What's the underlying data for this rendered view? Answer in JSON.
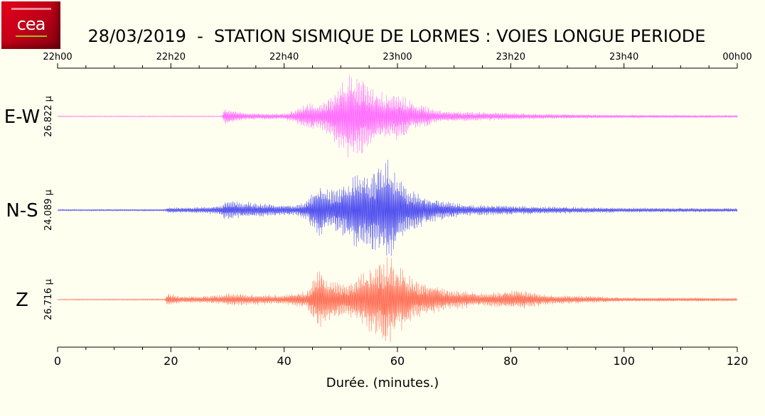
{
  "title": "28/03/2019  -  STATION SISMIQUE DE LORMES : VOIES LONGUE PERIODE",
  "logo": {
    "text": "cea"
  },
  "colors": {
    "background": "#fffff0",
    "ew": "#ff55ff",
    "ns": "#3333ee",
    "z": "#ff5a40"
  },
  "chart_data": {
    "type": "line",
    "title": "28/03/2019  -  STATION SISMIQUE DE LORMES : VOIES LONGUE PERIODE",
    "xlabel": "Durée.  (minutes.)",
    "xlim": [
      0,
      120
    ],
    "x_ticks": [
      "0",
      "20",
      "40",
      "60",
      "80",
      "100",
      "120"
    ],
    "top_axis_ticks": [
      "22h00",
      "22h20",
      "22h40",
      "23h00",
      "23h20",
      "23h40",
      "00h00"
    ],
    "grid": false,
    "series": [
      {
        "name": "E-W",
        "amplitude_label": "26.822 µ",
        "color": "#ff55ff",
        "envelope": [
          {
            "t": 0,
            "a": 0.01
          },
          {
            "t": 29,
            "a": 0.01
          },
          {
            "t": 29.5,
            "a": 0.18
          },
          {
            "t": 33,
            "a": 0.08
          },
          {
            "t": 40,
            "a": 0.07
          },
          {
            "t": 42,
            "a": 0.15
          },
          {
            "t": 44,
            "a": 0.32
          },
          {
            "t": 46,
            "a": 0.25
          },
          {
            "t": 48,
            "a": 0.45
          },
          {
            "t": 50,
            "a": 0.75
          },
          {
            "t": 52,
            "a": 1.0
          },
          {
            "t": 54,
            "a": 0.85
          },
          {
            "t": 56,
            "a": 0.6
          },
          {
            "t": 58,
            "a": 0.5
          },
          {
            "t": 60,
            "a": 0.55
          },
          {
            "t": 63,
            "a": 0.3
          },
          {
            "t": 68,
            "a": 0.12
          },
          {
            "t": 75,
            "a": 0.1
          },
          {
            "t": 85,
            "a": 0.06
          },
          {
            "t": 100,
            "a": 0.04
          },
          {
            "t": 120,
            "a": 0.03
          }
        ]
      },
      {
        "name": "N-S",
        "amplitude_label": "24.089 µ",
        "color": "#3333ee",
        "envelope": [
          {
            "t": 0,
            "a": 0.015
          },
          {
            "t": 19,
            "a": 0.02
          },
          {
            "t": 19.5,
            "a": 0.06
          },
          {
            "t": 25,
            "a": 0.06
          },
          {
            "t": 29,
            "a": 0.1
          },
          {
            "t": 29.5,
            "a": 0.2
          },
          {
            "t": 35,
            "a": 0.15
          },
          {
            "t": 42,
            "a": 0.1
          },
          {
            "t": 44,
            "a": 0.2
          },
          {
            "t": 46,
            "a": 0.55
          },
          {
            "t": 48,
            "a": 0.4
          },
          {
            "t": 50,
            "a": 0.5
          },
          {
            "t": 53,
            "a": 0.75
          },
          {
            "t": 56,
            "a": 0.85
          },
          {
            "t": 58.5,
            "a": 1.0
          },
          {
            "t": 60,
            "a": 0.7
          },
          {
            "t": 62,
            "a": 0.45
          },
          {
            "t": 66,
            "a": 0.25
          },
          {
            "t": 72,
            "a": 0.12
          },
          {
            "t": 85,
            "a": 0.08
          },
          {
            "t": 100,
            "a": 0.05
          },
          {
            "t": 120,
            "a": 0.04
          }
        ]
      },
      {
        "name": "Z",
        "amplitude_label": "26.716 µ",
        "color": "#ff5a40",
        "envelope": [
          {
            "t": 0,
            "a": 0.01
          },
          {
            "t": 19,
            "a": 0.015
          },
          {
            "t": 19.3,
            "a": 0.15
          },
          {
            "t": 22,
            "a": 0.07
          },
          {
            "t": 29,
            "a": 0.1
          },
          {
            "t": 30,
            "a": 0.14
          },
          {
            "t": 40,
            "a": 0.1
          },
          {
            "t": 44,
            "a": 0.2
          },
          {
            "t": 46,
            "a": 0.65
          },
          {
            "t": 48,
            "a": 0.45
          },
          {
            "t": 51,
            "a": 0.35
          },
          {
            "t": 54,
            "a": 0.6
          },
          {
            "t": 56,
            "a": 0.8
          },
          {
            "t": 58.5,
            "a": 1.0
          },
          {
            "t": 60,
            "a": 0.75
          },
          {
            "t": 63,
            "a": 0.45
          },
          {
            "t": 68,
            "a": 0.25
          },
          {
            "t": 75,
            "a": 0.15
          },
          {
            "t": 82,
            "a": 0.22
          },
          {
            "t": 86,
            "a": 0.12
          },
          {
            "t": 100,
            "a": 0.05
          },
          {
            "t": 120,
            "a": 0.04
          }
        ]
      }
    ]
  }
}
